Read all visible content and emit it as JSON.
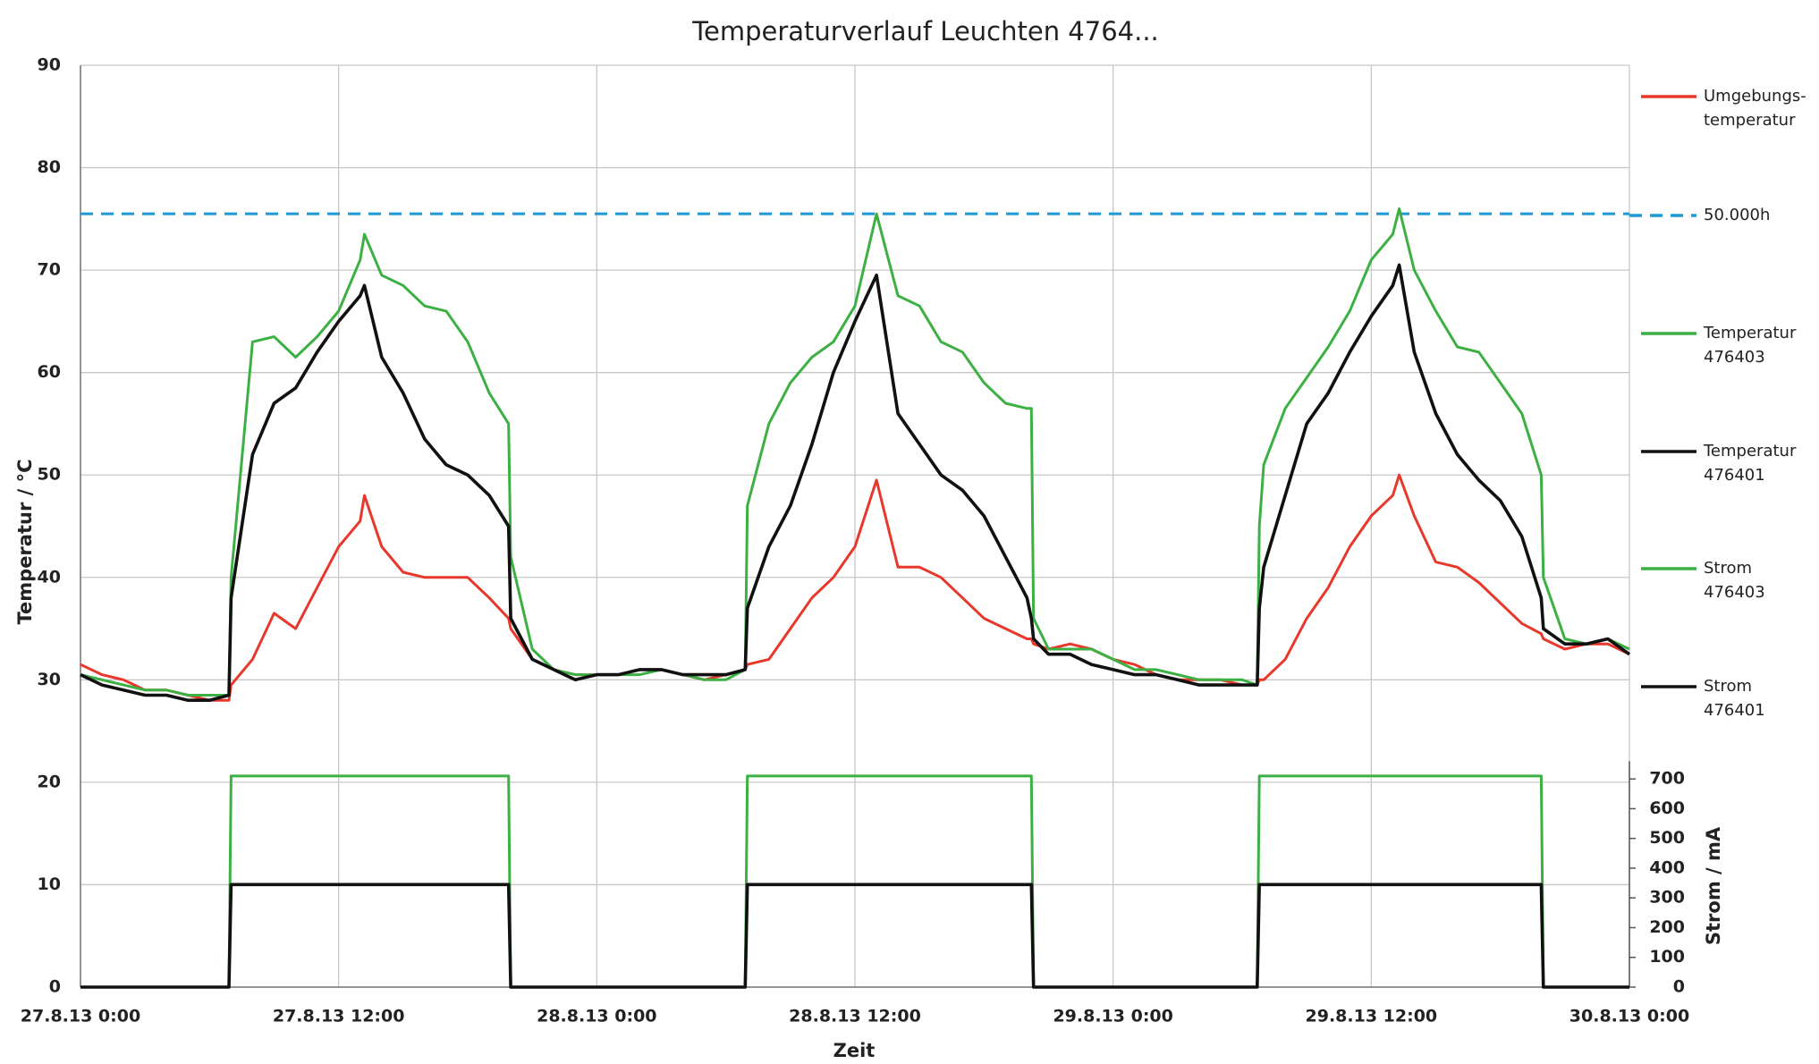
{
  "chart_data": {
    "type": "line",
    "title": "Temperaturverlauf Leuchten 4764...",
    "xlabel": "Zeit",
    "ylabel": "Temperatur / °C",
    "y2label": "Strom / mA",
    "x": [
      0,
      1,
      2,
      3,
      4,
      5,
      6,
      6.9,
      7,
      8,
      9,
      10,
      11,
      12,
      13,
      13.2,
      14,
      15,
      16,
      17,
      18,
      19,
      19.9,
      20,
      21,
      22,
      23,
      24,
      25,
      26,
      27,
      28,
      29,
      30,
      30.9,
      31,
      32,
      33,
      34,
      35,
      36,
      37,
      38,
      39,
      40,
      41,
      42,
      43,
      44,
      44.2,
      44.3,
      45,
      46,
      47,
      48,
      49,
      50,
      51,
      52,
      53,
      54,
      54.7,
      54.8,
      55,
      56,
      57,
      58,
      59,
      60,
      61,
      61.3,
      62,
      63,
      64,
      65,
      66,
      67,
      67.9,
      68,
      69,
      70,
      71,
      72
    ],
    "xlim": [
      0,
      72
    ],
    "xticks": [
      {
        "value": 0,
        "label": "27.8.13 0:00"
      },
      {
        "value": 12,
        "label": "27.8.13 12:00"
      },
      {
        "value": 24,
        "label": "28.8.13 0:00"
      },
      {
        "value": 36,
        "label": "28.8.13 12:00"
      },
      {
        "value": 48,
        "label": "29.8.13 0:00"
      },
      {
        "value": 60,
        "label": "29.8.13 12:00"
      },
      {
        "value": 72,
        "label": "30.8.13 0:00"
      }
    ],
    "ylim": [
      0,
      90
    ],
    "yticks": [
      0,
      10,
      20,
      30,
      40,
      50,
      60,
      70,
      80,
      90
    ],
    "y2lim": [
      0,
      3100
    ],
    "y2ticks": [
      0,
      100,
      200,
      300,
      400,
      500,
      600,
      700
    ],
    "grid": true,
    "legend": "right",
    "series": [
      {
        "name": "Umgebungs- temperatur",
        "color": "#e8382b",
        "values": [
          31.5,
          30.5,
          30,
          29,
          29,
          28.5,
          28,
          28,
          29.5,
          32,
          36.5,
          35,
          39,
          43,
          45.5,
          48,
          43,
          40.5,
          40,
          40,
          40,
          38,
          36,
          35,
          32,
          31,
          30.5,
          30.5,
          30.5,
          31,
          31,
          30.5,
          30,
          30.5,
          31,
          31.5,
          32,
          35,
          38,
          40,
          43,
          49.5,
          41,
          41,
          40,
          38,
          36,
          35,
          34,
          34,
          33.5,
          33,
          33.5,
          33,
          32,
          31.5,
          30.5,
          30,
          30,
          30,
          29.5,
          29.5,
          30,
          30,
          32,
          36,
          39,
          43,
          46,
          48,
          50,
          46,
          41.5,
          41,
          39.5,
          37.5,
          35.5,
          34.5,
          34,
          33,
          33.5,
          33.5,
          32.5
        ]
      },
      {
        "name": "50.000h",
        "color": "#1b9ad6",
        "dashed": true,
        "x": [
          0,
          72
        ],
        "values": [
          75.5,
          75.5
        ]
      },
      {
        "name": "Temperatur 476403",
        "color": "#3cb043",
        "values": [
          30.5,
          30,
          29.5,
          29,
          29,
          28.5,
          28.5,
          28.5,
          40,
          63,
          63.5,
          61.5,
          63.5,
          66,
          71,
          73.5,
          69.5,
          68.5,
          66.5,
          66,
          63,
          58,
          55,
          42,
          33,
          31,
          30.5,
          30.5,
          30.5,
          30.5,
          31,
          30.5,
          30,
          30,
          31,
          47,
          55,
          59,
          61.5,
          63,
          66.5,
          75.5,
          67.5,
          66.5,
          63,
          62,
          59,
          57,
          56.5,
          56.5,
          36,
          33,
          33,
          33,
          32,
          31,
          31,
          30.5,
          30,
          30,
          30,
          29.5,
          45,
          51,
          56.5,
          59.5,
          62.5,
          66,
          71,
          73.5,
          76,
          70,
          66,
          62.5,
          62,
          59,
          56,
          50,
          40,
          34,
          33.5,
          34,
          33
        ]
      },
      {
        "name": "Temperatur 476401",
        "color": "#111111",
        "values": [
          30.5,
          29.5,
          29,
          28.5,
          28.5,
          28,
          28,
          28.5,
          38,
          52,
          57,
          58.5,
          62,
          65,
          67.5,
          68.5,
          61.5,
          58,
          53.5,
          51,
          50,
          48,
          45,
          36,
          32,
          31,
          30,
          30.5,
          30.5,
          31,
          31,
          30.5,
          30.5,
          30.5,
          31,
          37,
          43,
          47,
          53,
          60,
          65,
          69.5,
          56,
          53,
          50,
          48.5,
          46,
          42,
          38,
          36,
          34,
          32.5,
          32.5,
          31.5,
          31,
          30.5,
          30.5,
          30,
          29.5,
          29.5,
          29.5,
          29.5,
          37,
          41,
          48,
          55,
          58,
          62,
          65.5,
          68.5,
          70.5,
          62,
          56,
          52,
          49.5,
          47.5,
          44,
          38,
          35,
          33.5,
          33.5,
          34,
          32.5
        ]
      },
      {
        "name": "Strom 476403",
        "color": "#3cb043",
        "axis": "y2",
        "values": [
          0,
          0,
          0,
          0,
          0,
          0,
          0,
          0,
          710,
          710,
          710,
          710,
          710,
          710,
          710,
          710,
          710,
          710,
          710,
          710,
          710,
          710,
          710,
          0,
          0,
          0,
          0,
          0,
          0,
          0,
          0,
          0,
          0,
          0,
          0,
          710,
          710,
          710,
          710,
          710,
          710,
          710,
          710,
          710,
          710,
          710,
          710,
          710,
          710,
          710,
          0,
          0,
          0,
          0,
          0,
          0,
          0,
          0,
          0,
          0,
          0,
          0,
          710,
          710,
          710,
          710,
          710,
          710,
          710,
          710,
          710,
          710,
          710,
          710,
          710,
          710,
          710,
          710,
          0,
          0,
          0,
          0,
          0
        ]
      },
      {
        "name": "Strom 476401",
        "color": "#111111",
        "axis": "y2",
        "values": [
          0,
          0,
          0,
          0,
          0,
          0,
          0,
          0,
          345,
          345,
          345,
          345,
          345,
          345,
          345,
          345,
          345,
          345,
          345,
          345,
          345,
          345,
          345,
          0,
          0,
          0,
          0,
          0,
          0,
          0,
          0,
          0,
          0,
          0,
          0,
          345,
          345,
          345,
          345,
          345,
          345,
          345,
          345,
          345,
          345,
          345,
          345,
          345,
          345,
          345,
          0,
          0,
          0,
          0,
          0,
          0,
          0,
          0,
          0,
          0,
          0,
          0,
          345,
          345,
          345,
          345,
          345,
          345,
          345,
          345,
          345,
          345,
          345,
          345,
          345,
          345,
          345,
          345,
          0,
          0,
          0,
          0,
          0
        ]
      }
    ]
  }
}
